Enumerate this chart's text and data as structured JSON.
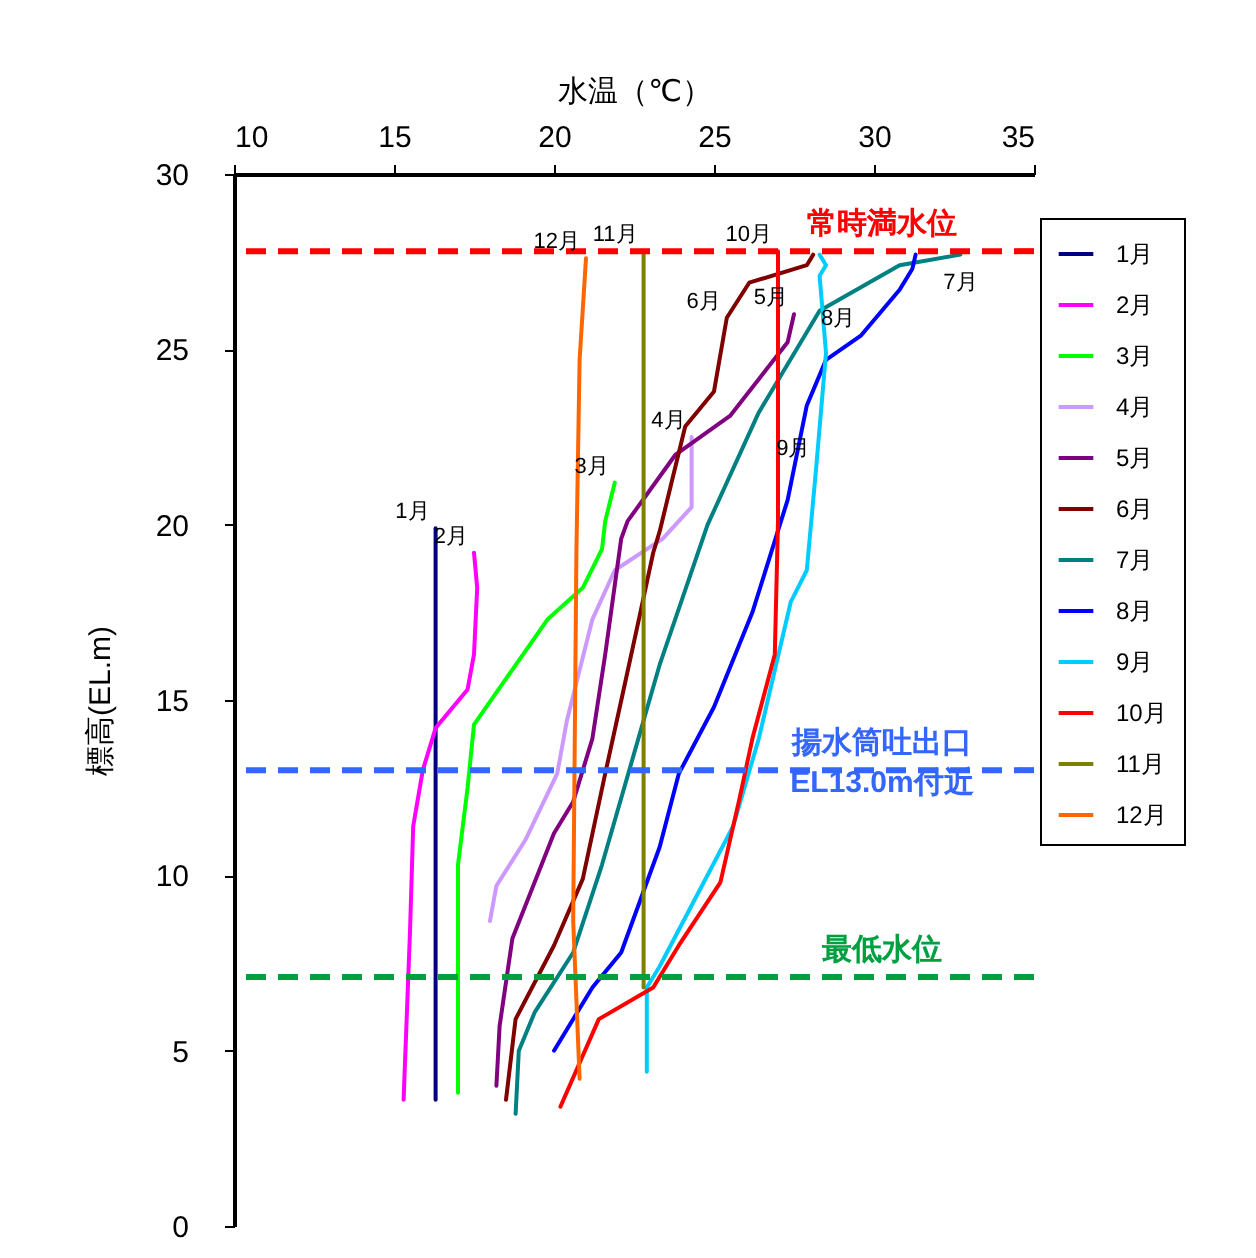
{
  "chart_data": {
    "type": "line",
    "xlabel": "水温（℃）",
    "ylabel": "標高(EL.m)",
    "xlim": [
      10,
      35
    ],
    "xticks": [
      10,
      15,
      20,
      25,
      30,
      35
    ],
    "ylim": [
      0,
      30
    ],
    "yticks": [
      0,
      5,
      10,
      15,
      20,
      25,
      30
    ],
    "grid": false,
    "legend": "right",
    "marker": "none",
    "line_style": "solid",
    "series": [
      {
        "name": "1月",
        "color": "#000080",
        "x": [
          16.3,
          16.3
        ],
        "values": [
          19.9,
          3.6
        ]
      },
      {
        "name": "2月",
        "color": "#ff00ff",
        "x": [
          17.5,
          17.6,
          17.5,
          17.3,
          16.3,
          15.9,
          15.6,
          15.5,
          15.3
        ],
        "values": [
          19.2,
          18.2,
          16.3,
          15.3,
          14.2,
          13.0,
          11.4,
          8.4,
          3.6
        ]
      },
      {
        "name": "3月",
        "color": "#00ff00",
        "x": [
          21.9,
          21.6,
          21.5,
          20.9,
          19.8,
          17.5,
          17.3,
          17.0,
          17.0
        ],
        "values": [
          21.2,
          20.1,
          19.3,
          18.2,
          17.3,
          14.3,
          12.5,
          10.3,
          3.8
        ]
      },
      {
        "name": "4月",
        "color": "#cc99ff",
        "x": [
          24.3,
          24.3,
          23.4,
          21.9,
          21.2,
          20.4,
          20.1,
          19.1,
          18.2,
          18.0
        ],
        "values": [
          22.5,
          20.5,
          19.6,
          18.7,
          17.3,
          14.4,
          12.9,
          11.0,
          9.7,
          8.7
        ]
      },
      {
        "name": "5月",
        "color": "#800080",
        "x": [
          27.5,
          27.3,
          25.5,
          23.8,
          22.3,
          22.1,
          21.6,
          21.2,
          20.6,
          20.0,
          18.7,
          18.3,
          18.2
        ],
        "values": [
          26.0,
          25.2,
          23.1,
          22.0,
          20.1,
          19.6,
          16.3,
          13.9,
          12.1,
          11.2,
          8.2,
          5.7,
          4.0
        ]
      },
      {
        "name": "6月",
        "color": "#800000",
        "x": [
          28.1,
          27.9,
          26.1,
          25.4,
          25.0,
          24.1,
          23.7,
          23.3,
          23.1,
          22.7,
          22.2,
          21.6,
          20.9,
          20.0,
          18.8,
          18.5
        ],
        "values": [
          27.7,
          27.4,
          26.9,
          25.9,
          23.8,
          22.8,
          21.3,
          19.8,
          19.2,
          17.5,
          15.4,
          12.9,
          9.9,
          8.0,
          5.9,
          3.6
        ]
      },
      {
        "name": "7月",
        "color": "#008080",
        "x": [
          32.7,
          30.8,
          28.3,
          26.4,
          24.8,
          23.3,
          22.7,
          21.5,
          20.6,
          19.4,
          18.9,
          18.8
        ],
        "values": [
          27.7,
          27.4,
          26.1,
          23.2,
          20.0,
          16.0,
          14.1,
          10.3,
          7.8,
          6.1,
          5.0,
          3.2
        ]
      },
      {
        "name": "8月",
        "color": "#0000ff",
        "x": [
          31.3,
          31.2,
          30.8,
          29.6,
          28.5,
          27.9,
          27.3,
          26.2,
          25.0,
          23.9,
          23.3,
          22.1,
          21.2,
          20.0
        ],
        "values": [
          27.7,
          27.3,
          26.7,
          25.4,
          24.7,
          23.4,
          20.7,
          17.5,
          14.8,
          12.9,
          10.8,
          7.8,
          6.8,
          5.0
        ]
      },
      {
        "name": "9月",
        "color": "#00ccff",
        "x": [
          28.3,
          28.5,
          28.3,
          28.5,
          28.2,
          27.9,
          27.4,
          26.4,
          25.6,
          23.3,
          22.9,
          22.9
        ],
        "values": [
          27.7,
          27.4,
          27.1,
          24.9,
          21.7,
          18.7,
          17.8,
          13.9,
          11.4,
          7.4,
          6.8,
          4.4
        ]
      },
      {
        "name": "10月",
        "color": "#ff0000",
        "x": [
          27.0,
          27.0,
          26.9,
          26.2,
          25.8,
          25.2,
          23.9,
          23.1,
          21.4,
          20.2
        ],
        "values": [
          27.8,
          20.1,
          16.3,
          13.9,
          12.2,
          9.8,
          8.0,
          6.8,
          5.9,
          3.4
        ]
      },
      {
        "name": "11月",
        "color": "#808000",
        "x": [
          22.8,
          22.8
        ],
        "values": [
          27.8,
          6.8
        ]
      },
      {
        "name": "12月",
        "color": "#ff6600",
        "x": [
          21.0,
          20.8,
          20.7,
          20.6,
          20.8
        ],
        "values": [
          27.6,
          24.7,
          19.2,
          8.7,
          4.2
        ]
      }
    ],
    "ref_lines": [
      {
        "axis": "y",
        "value": 27.8,
        "label": "常時満水位",
        "color": "#ff0000",
        "line_style": "dashed"
      },
      {
        "axis": "y",
        "value": 13.0,
        "label": "揚水筒吐出口\nEL13.0m付近",
        "color": "#3366ff",
        "line_style": "dashed"
      },
      {
        "axis": "y",
        "value": 7.1,
        "label": "最低水位",
        "color": "#00a040",
        "line_style": "dashed"
      }
    ],
    "annotations": [
      {
        "text": "12月",
        "x": 21.0,
        "y": 27.6
      },
      {
        "text": "11月",
        "x": 22.8,
        "y": 27.8
      },
      {
        "text": "10月",
        "x": 27.0,
        "y": 27.8
      },
      {
        "text": "6月",
        "x": 25.4,
        "y": 25.9
      },
      {
        "text": "5月",
        "x": 27.5,
        "y": 26.0
      },
      {
        "text": "7月",
        "x": 32.7,
        "y": 27.7
      },
      {
        "text": "8月",
        "x": 29.6,
        "y": 25.4
      },
      {
        "text": "4月",
        "x": 24.3,
        "y": 22.5
      },
      {
        "text": "9月",
        "x": 28.2,
        "y": 21.7
      },
      {
        "text": "3月",
        "x": 21.9,
        "y": 21.2
      },
      {
        "text": "1月",
        "x": 16.3,
        "y": 19.9
      },
      {
        "text": "2月",
        "x": 17.5,
        "y": 19.2
      }
    ]
  }
}
